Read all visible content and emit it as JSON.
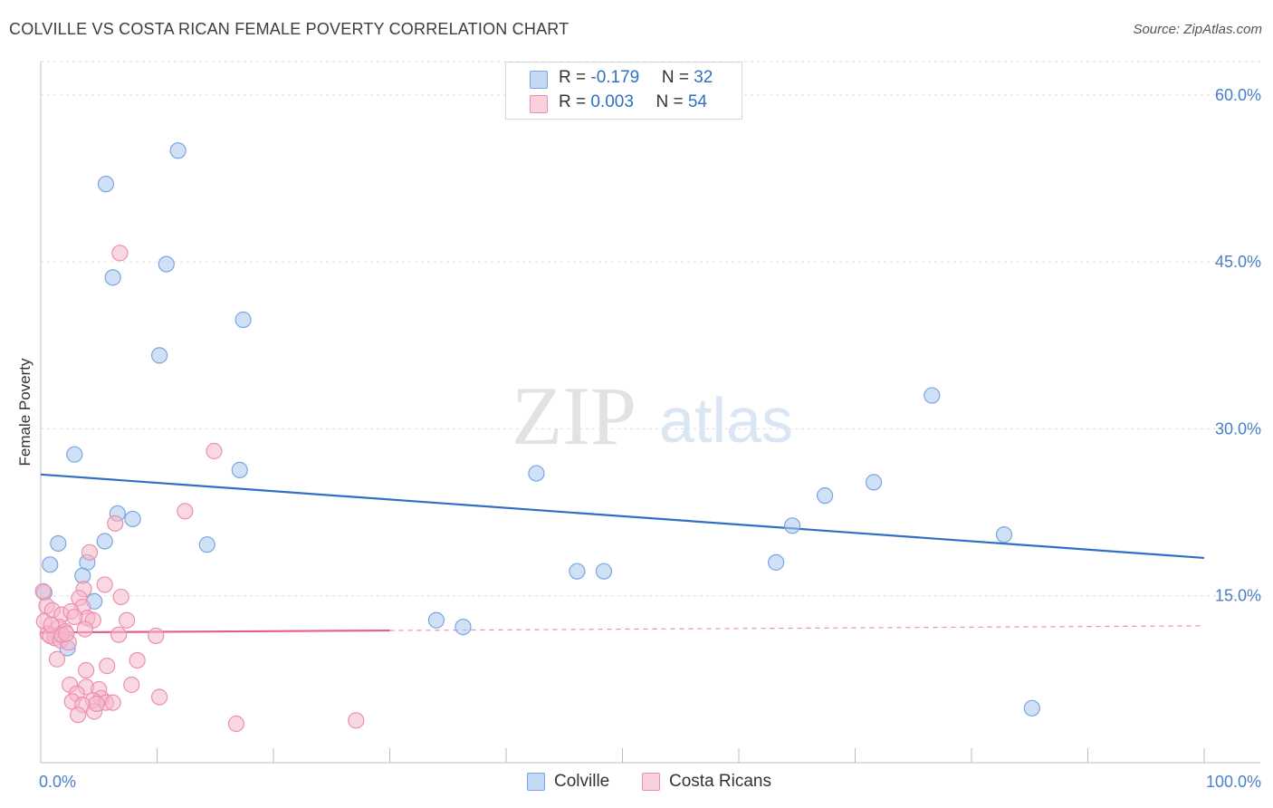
{
  "header": {
    "title": "COLVILLE VS COSTA RICAN FEMALE POVERTY CORRELATION CHART",
    "source": "Source: ZipAtlas.com"
  },
  "watermark": {
    "zip": "ZIP",
    "atlas": "atlas"
  },
  "legend_top": {
    "rows": [
      {
        "r_label": "R = ",
        "r_value": "-0.179",
        "n_label": "N = ",
        "n_value": "32",
        "color": "#aac8f0"
      },
      {
        "r_label": "R = ",
        "r_value": "0.003",
        "n_label": "N = ",
        "n_value": "54",
        "color": "#f6b8cb"
      }
    ]
  },
  "chart_data": {
    "type": "scatter",
    "title": "COLVILLE VS COSTA RICAN FEMALE POVERTY CORRELATION CHART",
    "xlabel": "",
    "ylabel": "Female Poverty",
    "xlim": [
      0,
      100
    ],
    "ylim": [
      0,
      63
    ],
    "x_tick_labels": [
      "0.0%",
      "100.0%"
    ],
    "y_ticks": [
      15,
      30,
      45,
      60
    ],
    "y_tick_labels": [
      "15.0%",
      "30.0%",
      "45.0%",
      "60.0%"
    ],
    "grid": true,
    "legend_position": "bottom-center",
    "series": [
      {
        "name": "Colville",
        "color": "#aac8f0",
        "stroke": "#7aa6df",
        "trend_color": "#2f6fc4",
        "trend": {
          "x": [
            0,
            100
          ],
          "y": [
            25.9,
            18.4
          ],
          "dashed_from": null
        },
        "points": [
          [
            11.8,
            55.0
          ],
          [
            5.6,
            52.0
          ],
          [
            10.8,
            44.8
          ],
          [
            6.2,
            43.6
          ],
          [
            17.4,
            39.8
          ],
          [
            10.2,
            36.6
          ],
          [
            76.6,
            33.0
          ],
          [
            2.9,
            27.7
          ],
          [
            17.1,
            26.3
          ],
          [
            42.6,
            26.0
          ],
          [
            71.6,
            25.2
          ],
          [
            67.4,
            24.0
          ],
          [
            6.6,
            22.4
          ],
          [
            7.9,
            21.9
          ],
          [
            64.6,
            21.3
          ],
          [
            82.8,
            20.5
          ],
          [
            1.5,
            19.7
          ],
          [
            5.5,
            19.9
          ],
          [
            14.3,
            19.6
          ],
          [
            4.0,
            18.0
          ],
          [
            0.8,
            17.8
          ],
          [
            63.2,
            18.0
          ],
          [
            46.1,
            17.2
          ],
          [
            48.4,
            17.2
          ],
          [
            3.6,
            16.8
          ],
          [
            0.3,
            15.3
          ],
          [
            4.6,
            14.5
          ],
          [
            34.0,
            12.8
          ],
          [
            36.3,
            12.2
          ],
          [
            1.5,
            11.5
          ],
          [
            2.3,
            10.3
          ],
          [
            85.2,
            4.9
          ]
        ]
      },
      {
        "name": "Costa Ricans",
        "color": "#f6b8cb",
        "stroke": "#ec8fae",
        "trend_color": "#e0608a",
        "trend": {
          "x": [
            0,
            100
          ],
          "y": [
            11.7,
            12.3
          ],
          "dashed_from": 30
        },
        "points": [
          [
            6.8,
            45.8
          ],
          [
            14.9,
            28.0
          ],
          [
            12.4,
            22.6
          ],
          [
            6.4,
            21.5
          ],
          [
            4.2,
            18.9
          ],
          [
            5.5,
            16.0
          ],
          [
            0.2,
            15.4
          ],
          [
            3.7,
            15.6
          ],
          [
            3.3,
            14.8
          ],
          [
            6.9,
            14.9
          ],
          [
            3.6,
            14.0
          ],
          [
            0.5,
            14.1
          ],
          [
            1.0,
            13.7
          ],
          [
            1.8,
            13.3
          ],
          [
            2.6,
            13.6
          ],
          [
            4.0,
            13.0
          ],
          [
            4.5,
            12.8
          ],
          [
            7.4,
            12.8
          ],
          [
            0.3,
            12.7
          ],
          [
            1.6,
            12.2
          ],
          [
            2.1,
            11.8
          ],
          [
            3.8,
            12.0
          ],
          [
            6.7,
            11.5
          ],
          [
            9.9,
            11.4
          ],
          [
            0.6,
            11.6
          ],
          [
            1.2,
            11.2
          ],
          [
            0.8,
            11.4
          ],
          [
            1.7,
            11.0
          ],
          [
            2.4,
            10.8
          ],
          [
            1.4,
            9.3
          ],
          [
            8.3,
            9.2
          ],
          [
            5.7,
            8.7
          ],
          [
            3.9,
            8.3
          ],
          [
            2.5,
            7.0
          ],
          [
            3.9,
            6.8
          ],
          [
            5.0,
            6.6
          ],
          [
            7.8,
            7.0
          ],
          [
            3.1,
            6.2
          ],
          [
            5.2,
            5.8
          ],
          [
            10.2,
            5.9
          ],
          [
            2.7,
            5.5
          ],
          [
            4.5,
            5.6
          ],
          [
            5.6,
            5.4
          ],
          [
            3.6,
            5.2
          ],
          [
            3.2,
            4.3
          ],
          [
            4.6,
            4.6
          ],
          [
            16.8,
            3.5
          ],
          [
            27.1,
            3.8
          ],
          [
            1.8,
            11.5
          ],
          [
            0.9,
            12.4
          ],
          [
            2.9,
            13.1
          ],
          [
            4.8,
            5.3
          ],
          [
            2.2,
            11.6
          ],
          [
            6.2,
            5.4
          ]
        ]
      }
    ]
  }
}
